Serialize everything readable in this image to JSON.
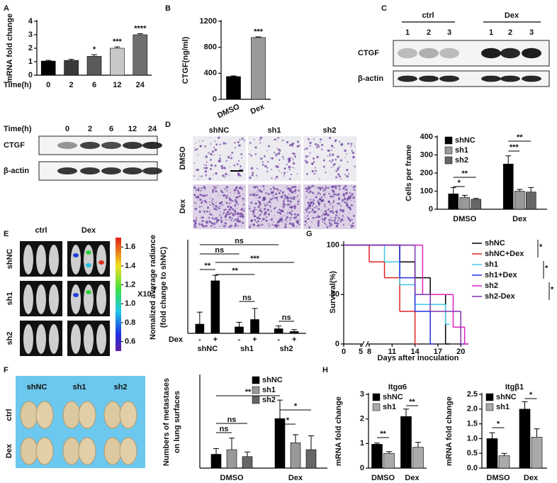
{
  "figure": {
    "panel_labels": [
      "A",
      "B",
      "C",
      "D",
      "E",
      "G",
      "F",
      "H"
    ],
    "blot_a": {
      "header": "Time(h)",
      "lanes": [
        "0",
        "2",
        "6",
        "12",
        "24"
      ],
      "rows": [
        "CTGF",
        "β-actin"
      ]
    },
    "blot_c": {
      "groups": [
        "ctrl",
        "Dex"
      ],
      "lanes": [
        "1",
        "2",
        "3",
        "1",
        "2",
        "3"
      ],
      "rows": [
        "CTGF",
        "β-actin"
      ]
    },
    "micrographs_d": {
      "columns": [
        "shNC",
        "sh1",
        "sh2"
      ],
      "rows": [
        "DMSO",
        "Dex"
      ]
    },
    "imaging_e": {
      "columns": [
        "ctrl",
        "Dex"
      ],
      "rows": [
        "shNC",
        "sh1",
        "sh2"
      ],
      "colorbar_lim": [
        0.5,
        1.7
      ],
      "colorbar_ticks": [
        1.6,
        1.4,
        1.2,
        {
          "value": 1,
          "label": "1.0"
        },
        0.8,
        0.6
      ],
      "colorbar_unit": "X10",
      "colorbar_exponent": "7"
    },
    "lungs_f": {
      "columns": [
        "shNC",
        "sh1",
        "sh2"
      ],
      "rows": [
        "ctrl",
        "Dex"
      ]
    }
  },
  "chart_data": [
    {
      "type": "bar",
      "ylabel": "mRNA fold change",
      "xlabel": "Time(h)",
      "categories": [
        "0",
        "2",
        "6",
        "12",
        "24"
      ],
      "values": [
        1.05,
        1.1,
        1.4,
        2.0,
        3.0
      ],
      "errors": [
        0.05,
        0.08,
        0.12,
        0.1,
        0.08
      ],
      "colors": [
        "#000000",
        "#3a3a3a",
        "#5a5a5a",
        "#c8c8c8",
        "#6e6e6e"
      ],
      "ylim": [
        0,
        4
      ],
      "yticks": [
        0,
        1,
        2,
        3,
        4
      ],
      "annotations": [
        "*",
        "***",
        "****"
      ]
    },
    {
      "type": "bar",
      "ylabel": "CTGF(ng/ml)",
      "categories": [
        "DMSO",
        "Dex"
      ],
      "values": [
        350,
        950
      ],
      "errors": [
        10,
        10
      ],
      "colors": [
        "#000000",
        "#9a9a9a"
      ],
      "ylim": [
        0,
        1200
      ],
      "yticks": [
        0,
        400,
        800,
        1200
      ],
      "annotations": [
        "***"
      ]
    },
    {
      "type": "bar",
      "ylabel": "Cells per frame",
      "categories": [
        "DMSO",
        "Dex"
      ],
      "series": [
        {
          "name": "shNC",
          "color": "#000000",
          "values": [
            85,
            250
          ],
          "errors": [
            35,
            45
          ]
        },
        {
          "name": "sh1",
          "color": "#999999",
          "values": [
            65,
            100
          ],
          "errors": [
            12,
            10
          ]
        },
        {
          "name": "sh2",
          "color": "#666666",
          "values": [
            55,
            95
          ],
          "errors": [
            5,
            25
          ]
        }
      ],
      "ylim": [
        0,
        400
      ],
      "yticks": [
        0,
        100,
        200,
        300,
        400
      ],
      "annotations": [
        "*",
        "**",
        "***",
        "**"
      ]
    },
    {
      "type": "bar",
      "ylabel": [
        "Nomalized average radiance",
        "(fold change to shNC)"
      ],
      "group_label": "Dex",
      "categories": [
        "shNC",
        "sh1",
        "sh2"
      ],
      "series": [
        {
          "name": "-",
          "color": "#000000",
          "values": [
            1.0,
            0.7,
            0.5
          ],
          "errors": [
            1.3,
            0.5,
            0.3
          ]
        },
        {
          "name": "+",
          "color": "#000000",
          "values": [
            5.7,
            1.5,
            0.2
          ],
          "errors": [
            0.6,
            1.2,
            0.2
          ]
        }
      ],
      "ylim": [
        0,
        10
      ],
      "annotations": [
        "**",
        "ns",
        "ns",
        "***",
        "**",
        "ns",
        "ns"
      ]
    },
    {
      "type": "line",
      "ylabel": "Survival(%)",
      "xlabel": "Days after inoculation",
      "xlim": [
        0,
        21
      ],
      "x_break": [
        5,
        8
      ],
      "xticks": [
        0,
        5,
        8,
        11,
        14,
        17,
        20
      ],
      "ylim": [
        0,
        104
      ],
      "yticks": [
        0,
        50,
        100
      ],
      "series": [
        {
          "name": "shNC",
          "color": "#000000",
          "x": [
            0,
            12,
            14,
            16,
            18
          ],
          "values": [
            100,
            83,
            67,
            50,
            0
          ]
        },
        {
          "name": "shNC+Dex",
          "color": "#e02020",
          "x": [
            0,
            8,
            10,
            12,
            14
          ],
          "values": [
            100,
            83,
            67,
            33,
            0
          ]
        },
        {
          "name": "sh1",
          "color": "#40c8e8",
          "x": [
            0,
            10,
            12,
            14,
            18
          ],
          "values": [
            100,
            83,
            60,
            40,
            20
          ]
        },
        {
          "name": "sh1+Dex",
          "color": "#2030e0",
          "x": [
            0,
            12,
            14,
            16
          ],
          "values": [
            100,
            67,
            33,
            0
          ]
        },
        {
          "name": "sh2",
          "color": "#e020c0",
          "x": [
            0,
            15,
            19,
            20.5
          ],
          "values": [
            100,
            50,
            17,
            0
          ]
        },
        {
          "name": "sh2-Dex",
          "color": "#8030b0",
          "x": [
            0,
            14,
            16,
            20
          ],
          "values": [
            100,
            50,
            33,
            0
          ]
        }
      ],
      "annotations": [
        "*",
        "*",
        "*"
      ]
    },
    {
      "type": "bar",
      "ylabel": [
        "Numbers of metastases",
        "on lung surfaces"
      ],
      "categories": [
        "DMSO",
        "Dex"
      ],
      "series": [
        {
          "name": "shNC",
          "color": "#000000",
          "values": [
            12,
            43
          ],
          "errors": [
            5,
            16
          ]
        },
        {
          "name": "sh1",
          "color": "#999999",
          "values": [
            16,
            22
          ],
          "errors": [
            10,
            7
          ]
        },
        {
          "name": "sh2",
          "color": "#666666",
          "values": [
            10,
            16
          ],
          "errors": [
            4,
            12
          ]
        }
      ],
      "ylim": [
        0,
        80
      ],
      "annotations": [
        "ns",
        "ns",
        "**",
        "*",
        "*"
      ]
    },
    {
      "type": "bar",
      "title": "Itgα6",
      "ylabel": "mRNA fold change",
      "categories": [
        "DMSO",
        "Dex"
      ],
      "series": [
        {
          "name": "shNC",
          "color": "#000000",
          "values": [
            0.97,
            2.1
          ],
          "errors": [
            0.05,
            0.3
          ]
        },
        {
          "name": "sh1",
          "color": "#aaaaaa",
          "values": [
            0.6,
            0.85
          ],
          "errors": [
            0.07,
            0.2
          ]
        }
      ],
      "ylim": [
        0,
        3
      ],
      "yticks": [
        0,
        1,
        2,
        3
      ],
      "annotations": [
        "**",
        "**"
      ]
    },
    {
      "type": "bar",
      "title": "Itgβ1",
      "ylabel": "mRNA fold change",
      "categories": [
        "DMSO",
        "Dex"
      ],
      "series": [
        {
          "name": "shNC",
          "color": "#000000",
          "values": [
            1.0,
            2.0
          ],
          "errors": [
            0.2,
            0.25
          ]
        },
        {
          "name": "sh1",
          "color": "#aaaaaa",
          "values": [
            0.42,
            1.05
          ],
          "errors": [
            0.08,
            0.28
          ]
        }
      ],
      "ylim": [
        0,
        2.5
      ],
      "yticks": [
        {
          "value": 0,
          "label": "0.0"
        },
        0.5,
        {
          "value": 1,
          "label": "1.0"
        },
        1.5,
        {
          "value": 2,
          "label": "2.0"
        },
        2.5
      ],
      "annotations": [
        "*",
        "*"
      ]
    }
  ]
}
